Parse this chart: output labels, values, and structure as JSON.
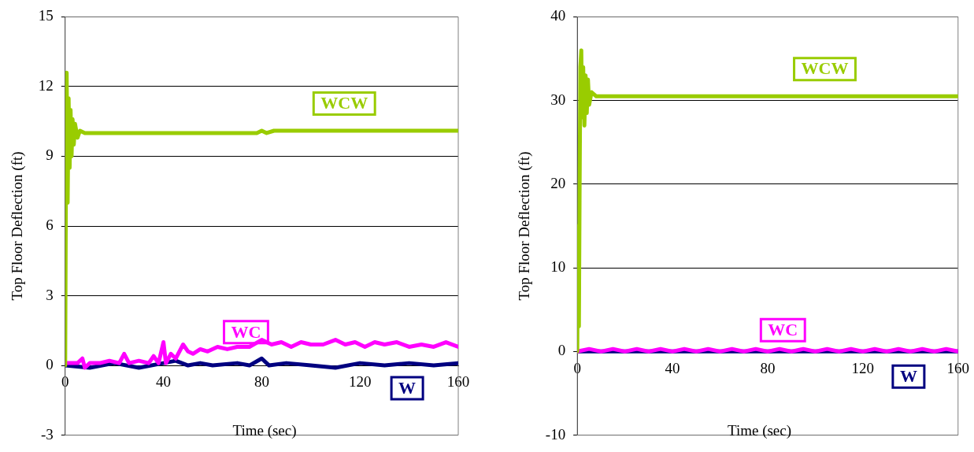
{
  "chart_data": [
    {
      "type": "line",
      "xlabel": "Time (sec)",
      "ylabel": "Top Floor Deflection (ft)",
      "xlim": [
        0,
        160
      ],
      "xticks": [
        0,
        40,
        80,
        120,
        160
      ],
      "ylim": [
        -3,
        15
      ],
      "yticks": [
        -3,
        0,
        3,
        6,
        9,
        12,
        15
      ],
      "grid": "y",
      "marker": "none",
      "line_style": "solid",
      "series": [
        {
          "name": "WCW",
          "color": "#99cc00",
          "x": [
            0,
            0.3,
            0.6,
            1,
            1.4,
            1.8,
            2.2,
            2.6,
            3,
            3.5,
            4,
            5,
            6,
            8,
            20,
            40,
            60,
            78,
            80,
            82,
            85,
            100,
            120,
            140,
            160
          ],
          "values": [
            0,
            8,
            12.6,
            7,
            11.5,
            8.5,
            11,
            9,
            10.6,
            9.5,
            10.4,
            9.8,
            10.1,
            10,
            10,
            10,
            10,
            10,
            10.1,
            10,
            10.1,
            10.1,
            10.1,
            10.1,
            10.1
          ]
        },
        {
          "name": "WC",
          "color": "#ff00ff",
          "x": [
            0,
            5,
            7,
            8,
            10,
            14,
            18,
            22,
            24,
            26,
            30,
            34,
            36,
            38,
            40,
            41,
            43,
            45,
            48,
            50,
            52,
            55,
            58,
            62,
            66,
            70,
            75,
            80,
            84,
            88,
            92,
            96,
            100,
            105,
            110,
            114,
            118,
            122,
            126,
            130,
            135,
            140,
            145,
            150,
            155,
            160
          ],
          "values": [
            0.1,
            0.1,
            0.3,
            -0.1,
            0.1,
            0.1,
            0.2,
            0.1,
            0.5,
            0.1,
            0.2,
            0.1,
            0.4,
            0.1,
            1.0,
            0.1,
            0.5,
            0.3,
            0.9,
            0.6,
            0.5,
            0.7,
            0.6,
            0.8,
            0.7,
            0.8,
            0.8,
            1.1,
            0.9,
            1.0,
            0.8,
            1.0,
            0.9,
            0.9,
            1.1,
            0.9,
            1.0,
            0.8,
            1.0,
            0.9,
            1.0,
            0.8,
            0.9,
            0.8,
            1.0,
            0.8
          ]
        },
        {
          "name": "W",
          "color": "#000080",
          "x": [
            0,
            10,
            20,
            30,
            40,
            45,
            50,
            55,
            60,
            70,
            75,
            80,
            83,
            90,
            100,
            110,
            120,
            130,
            140,
            150,
            160
          ],
          "values": [
            0,
            -0.1,
            0.1,
            -0.1,
            0.1,
            0.2,
            0,
            0.1,
            0,
            0.1,
            0,
            0.3,
            0,
            0.1,
            0,
            -0.1,
            0.1,
            0,
            0.1,
            0,
            0.1
          ]
        }
      ]
    },
    {
      "type": "line",
      "xlabel": "Time (sec)",
      "ylabel": "Top Floor Deflection (ft)",
      "xlim": [
        0,
        160
      ],
      "xticks": [
        0,
        40,
        80,
        120,
        160
      ],
      "ylim": [
        -10,
        40
      ],
      "yticks": [
        -10,
        0,
        10,
        20,
        30,
        40
      ],
      "grid": "y",
      "marker": "none",
      "line_style": "solid",
      "series": [
        {
          "name": "WCW",
          "color": "#99cc00",
          "x": [
            0,
            0.3,
            0.7,
            1,
            1.3,
            1.7,
            2,
            2.5,
            3,
            3.5,
            4,
            4.5,
            5,
            6,
            8,
            40,
            80,
            120,
            160
          ],
          "values": [
            0,
            15,
            3,
            20,
            34,
            36,
            28,
            34,
            27,
            33,
            28.5,
            32.5,
            29.5,
            31,
            30.5,
            30.5,
            30.5,
            30.5,
            30.5
          ]
        },
        {
          "name": "WC",
          "color": "#ff00ff",
          "x": [
            0,
            5,
            10,
            15,
            20,
            25,
            30,
            35,
            40,
            45,
            50,
            55,
            60,
            65,
            70,
            75,
            80,
            85,
            90,
            95,
            100,
            105,
            110,
            115,
            120,
            125,
            130,
            135,
            140,
            145,
            150,
            155,
            160
          ],
          "values": [
            0,
            0.3,
            0,
            0.3,
            0,
            0.3,
            0,
            0.3,
            0,
            0.3,
            0,
            0.3,
            0,
            0.3,
            0,
            0.3,
            0,
            0.3,
            0,
            0.3,
            0,
            0.3,
            0,
            0.3,
            0,
            0.3,
            0,
            0.3,
            0,
            0.3,
            0,
            0.3,
            0
          ]
        },
        {
          "name": "W",
          "color": "#000080",
          "x": [
            0,
            40,
            80,
            120,
            160
          ],
          "values": [
            0,
            0,
            0,
            0,
            0
          ]
        }
      ]
    }
  ]
}
